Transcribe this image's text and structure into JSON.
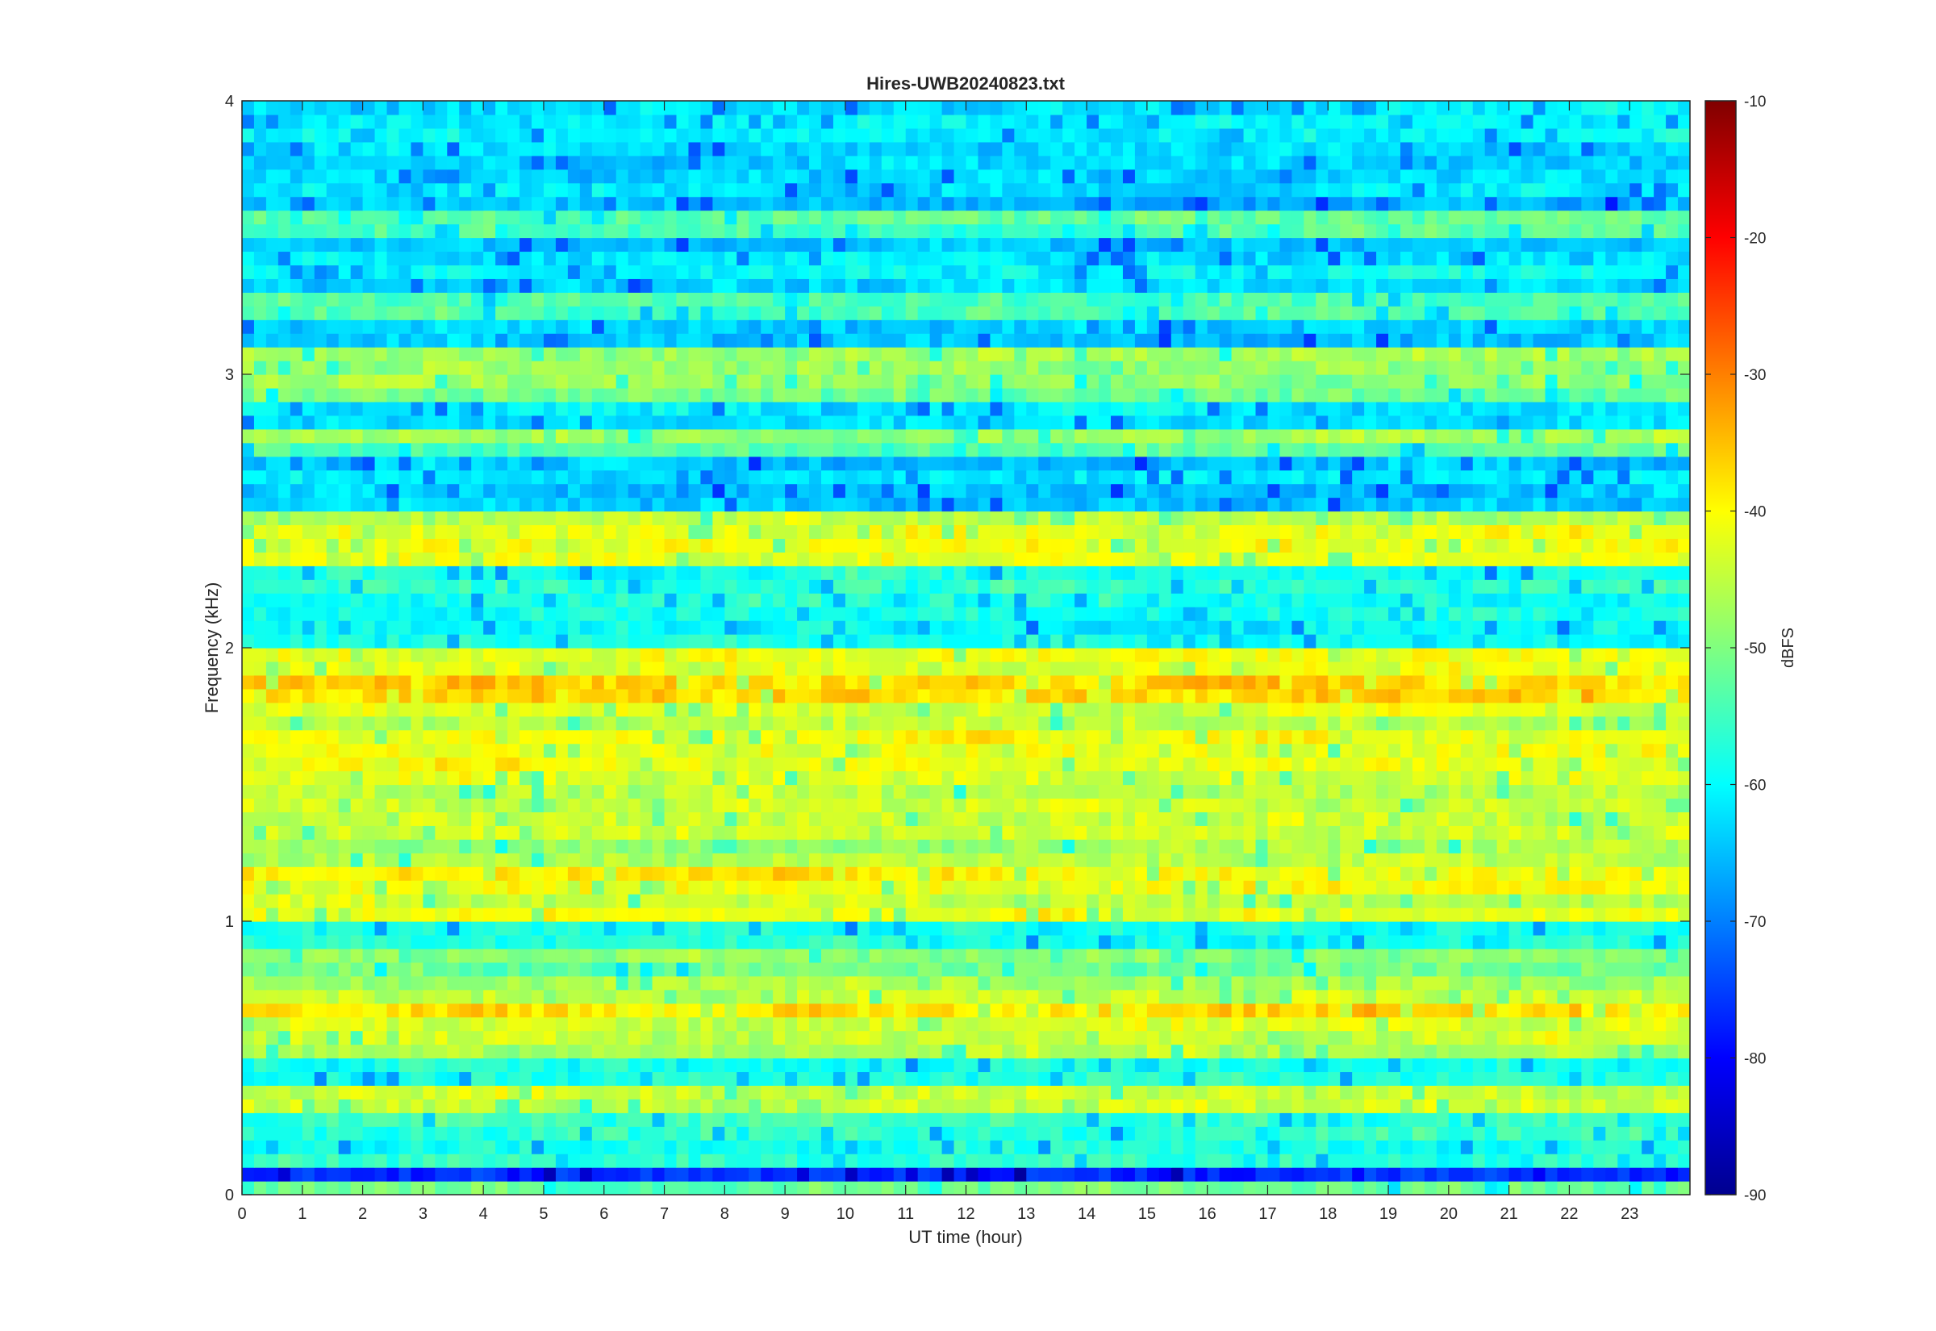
{
  "chart_data": {
    "type": "heatmap",
    "title": "Hires-UWB20240823.txt",
    "xlabel": "UT time (hour)",
    "ylabel": "Frequency (kHz)",
    "xlim": [
      0,
      24
    ],
    "ylim": [
      0,
      4
    ],
    "x_ticks": [
      "0",
      "1",
      "2",
      "3",
      "4",
      "5",
      "6",
      "7",
      "8",
      "9",
      "10",
      "11",
      "12",
      "13",
      "14",
      "15",
      "16",
      "17",
      "18",
      "19",
      "20",
      "21",
      "22",
      "23"
    ],
    "y_ticks": [
      "0",
      "1",
      "2",
      "3",
      "4"
    ],
    "colorbar": {
      "label": "dBFS",
      "range": [
        -90,
        -10
      ],
      "ticks": [
        "-10",
        "-20",
        "-30",
        "-40",
        "-50",
        "-60",
        "-70",
        "-80",
        "-90"
      ],
      "colormap": "jet"
    },
    "grid": false,
    "bands_dbfs_approx": [
      {
        "f_khz": 0.05,
        "level": -52
      },
      {
        "f_khz": 0.1,
        "level": -75
      },
      {
        "f_khz": 0.15,
        "level": -58
      },
      {
        "f_khz": 0.35,
        "level": -45
      },
      {
        "f_khz": 0.55,
        "level": -45
      },
      {
        "f_khz": 0.65,
        "level": -40
      },
      {
        "f_khz": 0.75,
        "level": -47
      },
      {
        "f_khz": 0.85,
        "level": -48
      },
      {
        "f_khz": 1.05,
        "level": -44
      },
      {
        "f_khz": 1.15,
        "level": -42
      },
      {
        "f_khz": 1.25,
        "level": -46
      },
      {
        "f_khz": 1.35,
        "level": -44
      },
      {
        "f_khz": 1.45,
        "level": -43
      },
      {
        "f_khz": 1.55,
        "level": -40
      },
      {
        "f_khz": 1.65,
        "level": -42
      },
      {
        "f_khz": 1.75,
        "level": -44
      },
      {
        "f_khz": 1.85,
        "level": -35
      },
      {
        "f_khz": 1.95,
        "level": -42
      },
      {
        "f_khz": 2.35,
        "level": -44
      },
      {
        "f_khz": 2.45,
        "level": -44
      },
      {
        "f_khz": 2.75,
        "level": -50
      },
      {
        "f_khz": 2.95,
        "level": -50
      },
      {
        "f_khz": 3.05,
        "level": -48
      },
      {
        "f_khz": 3.25,
        "level": -52
      },
      {
        "f_khz": 3.55,
        "level": -55
      }
    ]
  }
}
